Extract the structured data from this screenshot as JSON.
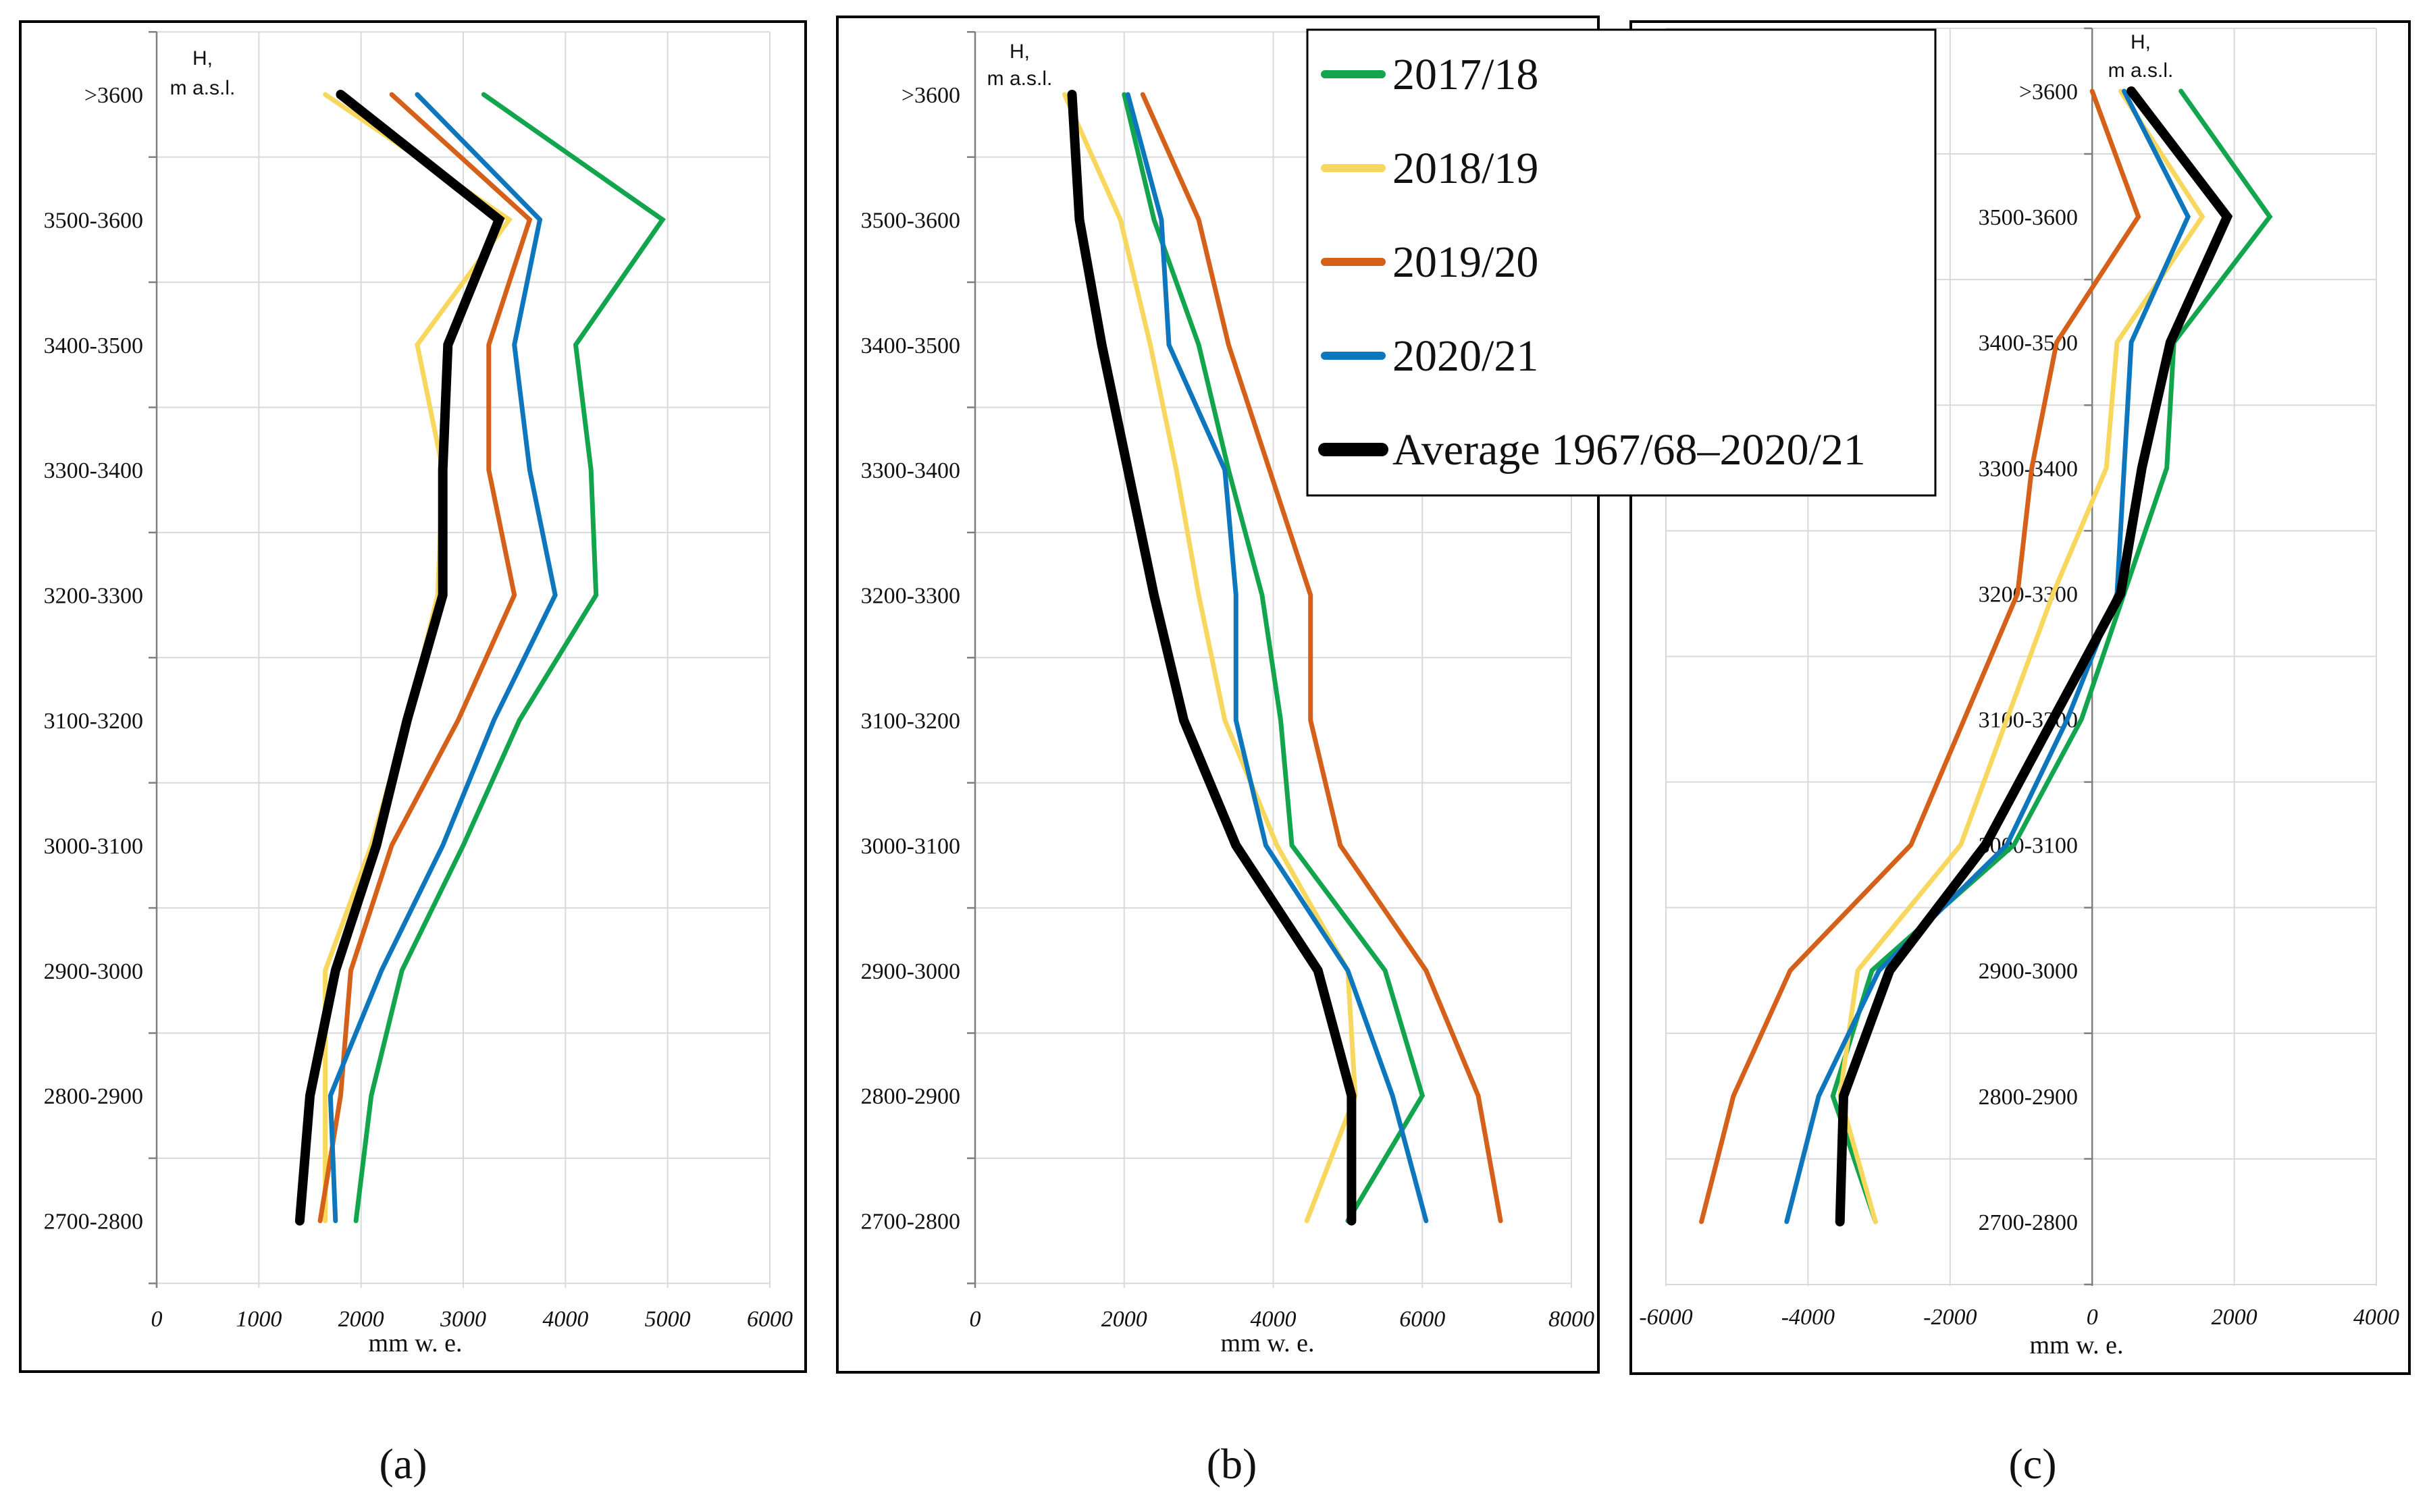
{
  "legend": {
    "entries": [
      {
        "label": "2017/18",
        "color": "#12a54e"
      },
      {
        "label": "2018/19",
        "color": "#f8d75e"
      },
      {
        "label": "2019/20",
        "color": "#d4601a"
      },
      {
        "label": "2020/21",
        "color": "#0e76bc"
      },
      {
        "label": "Average 1967/68–2020/21",
        "color": "#000000"
      }
    ]
  },
  "chart_data": [
    {
      "type": "line",
      "panel_label": "(a)",
      "ylabel": "H,\nm a.s.l.",
      "xlabel": "mm w. e.",
      "xlim": [
        0,
        6000
      ],
      "xticks": [
        0,
        1000,
        2000,
        3000,
        4000,
        5000,
        6000
      ],
      "categories": [
        ">3600",
        "3500-3600",
        "3400-3500",
        "3300-3400",
        "3200-3300",
        "3100-3200",
        "3000-3100",
        "2900-3000",
        "2800-2900",
        "2700-2800"
      ],
      "series": [
        {
          "name": "2017/18",
          "color": "#12a54e",
          "values": [
            3200,
            4950,
            4100,
            4250,
            4300,
            3550,
            3000,
            2400,
            2100,
            1950
          ]
        },
        {
          "name": "2018/19",
          "color": "#f8d75e",
          "values": [
            1650,
            3450,
            2550,
            2800,
            2750,
            2450,
            2100,
            1650,
            1650,
            1650
          ]
        },
        {
          "name": "2019/20",
          "color": "#d4601a",
          "values": [
            2300,
            3650,
            3250,
            3250,
            3500,
            2950,
            2300,
            1900,
            1800,
            1600
          ]
        },
        {
          "name": "2020/21",
          "color": "#0e76bc",
          "values": [
            2550,
            3750,
            3500,
            3650,
            3900,
            3300,
            2800,
            2200,
            1700,
            1750
          ]
        },
        {
          "name": "Average 1967/68–2020/21",
          "color": "#000000",
          "values": [
            1800,
            3350,
            2850,
            2800,
            2800,
            2450,
            2150,
            1750,
            1500,
            1400
          ]
        }
      ]
    },
    {
      "type": "line",
      "panel_label": "(b)",
      "ylabel": "H,\nm a.s.l.",
      "xlabel": "mm w. e.",
      "xlim": [
        0,
        8000
      ],
      "xticks": [
        0,
        2000,
        4000,
        6000,
        8000
      ],
      "categories": [
        ">3600",
        "3500-3600",
        "3400-3500",
        "3300-3400",
        "3200-3300",
        "3100-3200",
        "3000-3100",
        "2900-3000",
        "2800-2900",
        "2700-2800"
      ],
      "series": [
        {
          "name": "2017/18",
          "color": "#12a54e",
          "values": [
            2000,
            2400,
            3000,
            3400,
            3850,
            4100,
            4250,
            5500,
            6000,
            5000
          ]
        },
        {
          "name": "2018/19",
          "color": "#f8d75e",
          "values": [
            1200,
            1950,
            2350,
            2700,
            3000,
            3350,
            4050,
            5000,
            5100,
            4450
          ]
        },
        {
          "name": "2019/20",
          "color": "#d4601a",
          "values": [
            2250,
            3000,
            3400,
            3950,
            4500,
            4500,
            4900,
            6050,
            6750,
            7050
          ]
        },
        {
          "name": "2020/21",
          "color": "#0e76bc",
          "values": [
            2050,
            2500,
            2600,
            3350,
            3500,
            3500,
            3900,
            5000,
            5600,
            6050
          ]
        },
        {
          "name": "Average 1967/68–2020/21",
          "color": "#000000",
          "values": [
            1300,
            1400,
            1700,
            2050,
            2400,
            2800,
            3500,
            4600,
            5050,
            5050
          ]
        }
      ]
    },
    {
      "type": "line",
      "panel_label": "(c)",
      "ylabel": "H,\nm a.s.l.",
      "xlabel": "mm w. e.",
      "xlim": [
        -6000,
        4000
      ],
      "xticks": [
        -6000,
        -4000,
        -2000,
        0,
        2000,
        4000
      ],
      "categories": [
        ">3600",
        "3500-3600",
        "3400-3500",
        "3300-3400",
        "3200-3300",
        "3100-3200",
        "3000-3100",
        "2900-3000",
        "2800-2900",
        "2700-2800"
      ],
      "series": [
        {
          "name": "2017/18",
          "color": "#12a54e",
          "values": [
            1250,
            2500,
            1150,
            1050,
            450,
            -150,
            -1100,
            -3100,
            -3650,
            -3050
          ]
        },
        {
          "name": "2018/19",
          "color": "#f8d75e",
          "values": [
            400,
            1550,
            350,
            200,
            -550,
            -1200,
            -1850,
            -3300,
            -3550,
            -3050
          ]
        },
        {
          "name": "2019/20",
          "color": "#d4601a",
          "values": [
            0,
            650,
            -500,
            -850,
            -1050,
            -1800,
            -2550,
            -4250,
            -5050,
            -5500
          ]
        },
        {
          "name": "2020/21",
          "color": "#0e76bc",
          "values": [
            450,
            1350,
            550,
            450,
            350,
            -350,
            -1200,
            -3000,
            -3850,
            -4300
          ]
        },
        {
          "name": "Average 1967/68–2020/21",
          "color": "#000000",
          "values": [
            550,
            1900,
            1100,
            700,
            400,
            -550,
            -1500,
            -2850,
            -3500,
            -3550
          ]
        }
      ]
    }
  ]
}
